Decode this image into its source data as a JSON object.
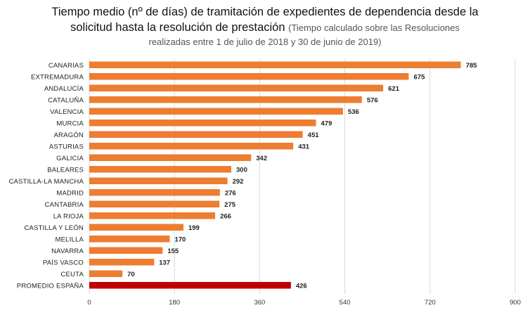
{
  "title": {
    "line1": "Tiempo medio (nº de días) de tramitación de expedientes de dependencia desde la",
    "line2_main": "solicitud hasta la resolución de prestación",
    "line2_sub": "(Tiempo calculado sobre las Resoluciones",
    "line3_sub": "realizadas entre 1 de julio de 2018 y 30 de junio de 2019)"
  },
  "colors": {
    "bar": "#ed7d31",
    "highlight": "#c00000"
  },
  "chart_data": {
    "type": "bar",
    "orientation": "horizontal",
    "categories": [
      "CANARIAS",
      "EXTREMADURA",
      "ANDALUCÍA",
      "CATALUÑA",
      "VALENCIA",
      "MURCIA",
      "ARAGÓN",
      "ASTURIAS",
      "GALICIA",
      "BALEARES",
      "CASTILLA-LA MANCHA",
      "MADRID",
      "CANTABRIA",
      "LA RIOJA",
      "CASTILLA Y LEÓN",
      "MELILLA",
      "NAVARRA",
      "PAÍS VASCO",
      "CEUTA",
      "PROMEDIO ESPAÑA"
    ],
    "values": [
      785,
      675,
      621,
      576,
      536,
      479,
      451,
      431,
      342,
      300,
      292,
      276,
      275,
      266,
      199,
      170,
      155,
      137,
      70,
      426
    ],
    "highlight_category": "PROMEDIO ESPAÑA",
    "xlim": [
      0,
      900
    ],
    "xticks": [
      0,
      180,
      360,
      540,
      720,
      900
    ],
    "grid": true,
    "legend": "none"
  }
}
